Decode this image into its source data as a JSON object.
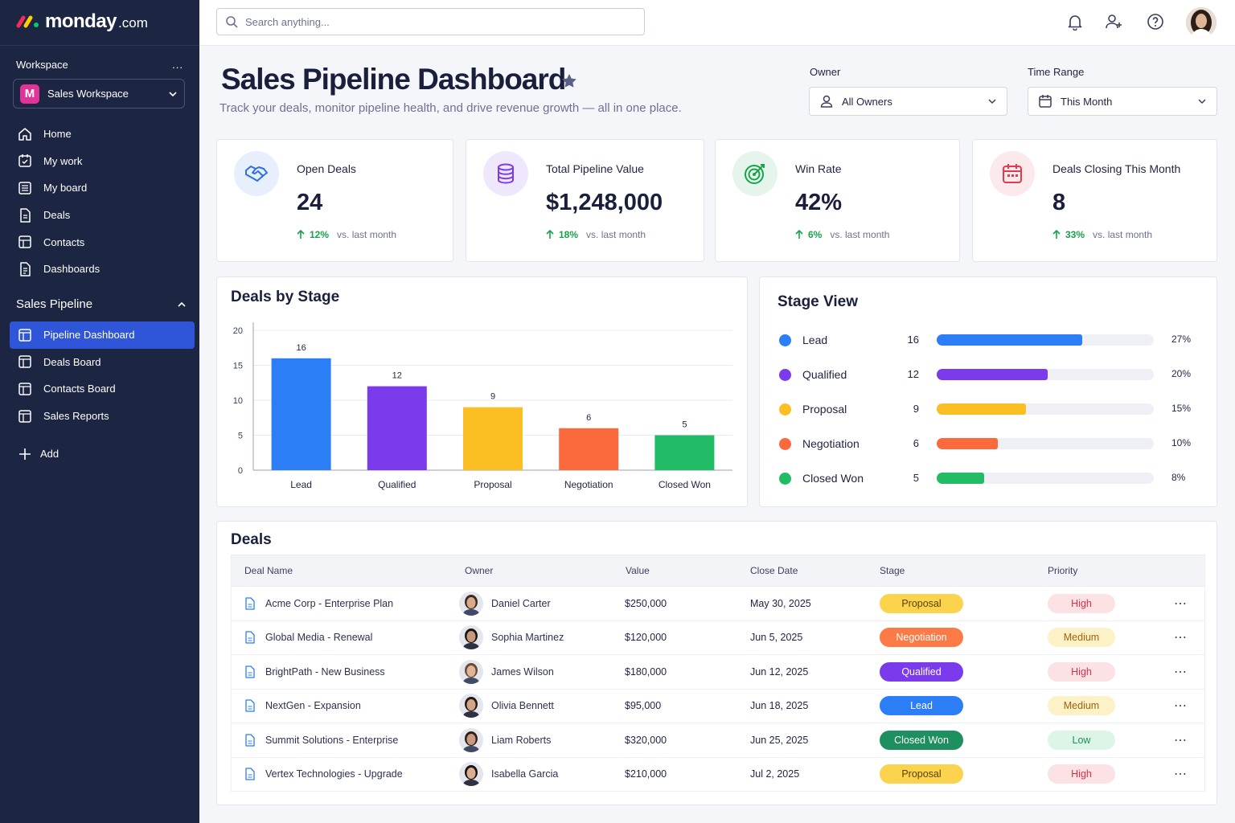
{
  "sidebar": {
    "brand": {
      "name": "monday",
      "tld": ".com"
    },
    "workspace_heading": "Workspace",
    "workspace_menu": "...",
    "workspace_badge": "M",
    "workspace_name": "Sales Workspace",
    "nav": [
      {
        "label": "Home",
        "icon": "home-icon"
      },
      {
        "label": "My work",
        "icon": "calendar-check-icon"
      },
      {
        "label": "My board",
        "icon": "board-icon"
      },
      {
        "label": "Deals",
        "icon": "document-icon"
      },
      {
        "label": "Contacts",
        "icon": "contacts-icon"
      },
      {
        "label": "Dashboards",
        "icon": "dashboard-icon"
      }
    ],
    "section_title": "Sales Pipeline",
    "section_items": [
      {
        "label": "Pipeline Dashboard",
        "active": true
      },
      {
        "label": "Deals Board"
      },
      {
        "label": "Contacts Board"
      },
      {
        "label": "Sales Reports"
      }
    ],
    "add_label": "Add"
  },
  "topbar": {
    "search_placeholder": "Search anything..."
  },
  "header": {
    "title": "Sales Pipeline Dashboard",
    "subtitle": "Track your deals, monitor pipeline health, and drive revenue growth — all in one place.",
    "owner_label": "Owner",
    "owner_value": "All Owners",
    "range_label": "Time Range",
    "range_value": "This Month"
  },
  "kpis": [
    {
      "label": "Open Deals",
      "value": "24",
      "delta": "12%",
      "vs": "vs. last month",
      "icon": "handshake-icon",
      "color": "#2f6fe0",
      "bg": "#e7effc"
    },
    {
      "label": "Total Pipeline Value",
      "value": "$1,248,000",
      "delta": "18%",
      "vs": "vs. last month",
      "icon": "coins-icon",
      "color": "#7c3aed",
      "bg": "#efe8fc"
    },
    {
      "label": "Win Rate",
      "value": "42%",
      "delta": "6%",
      "vs": "vs. last month",
      "icon": "target-icon",
      "color": "#16a34a",
      "bg": "#e6f5ec"
    },
    {
      "label": "Deals Closing This Month",
      "value": "8",
      "delta": "33%",
      "vs": "vs. last month",
      "icon": "calendar-icon",
      "color": "#e23a4f",
      "bg": "#fce9ec"
    }
  ],
  "stage_chart_title": "Deals by Stage",
  "chart_data": {
    "type": "bar",
    "categories": [
      "Lead",
      "Qualified",
      "Proposal",
      "Negotiation",
      "Closed Won"
    ],
    "values": [
      16,
      12,
      9,
      6,
      5
    ],
    "colors": [
      "#2b7ef5",
      "#7c3aed",
      "#fbbf24",
      "#fb6a3c",
      "#22bb66"
    ],
    "yticks": [
      0,
      5,
      10,
      15,
      20
    ],
    "ylim": [
      0,
      20
    ],
    "grid": true
  },
  "stage_view": {
    "title": "Stage View",
    "rows": [
      {
        "name": "Lead",
        "count": "16",
        "pct": "27%",
        "fill": 0.67,
        "color": "#2b7ef5"
      },
      {
        "name": "Qualified",
        "count": "12",
        "pct": "20%",
        "fill": 0.51,
        "color": "#7c3aed"
      },
      {
        "name": "Proposal",
        "count": "9",
        "pct": "15%",
        "fill": 0.41,
        "color": "#fbbf24"
      },
      {
        "name": "Negotiation",
        "count": "6",
        "pct": "10%",
        "fill": 0.28,
        "color": "#fb6a3c"
      },
      {
        "name": "Closed Won",
        "count": "5",
        "pct": "8%",
        "fill": 0.22,
        "color": "#22bb66"
      }
    ]
  },
  "deals": {
    "title": "Deals",
    "columns": [
      "Deal Name",
      "Owner",
      "Value",
      "Close Date",
      "Stage",
      "Priority"
    ],
    "rows": [
      {
        "name": "Acme Corp - Enterprise Plan",
        "owner": "Daniel Carter",
        "value": "$250,000",
        "date": "May 30, 2025",
        "stage": "Proposal",
        "priority": "High"
      },
      {
        "name": "Global Media - Renewal",
        "owner": "Sophia Martinez",
        "value": "$120,000",
        "date": "Jun 5, 2025",
        "stage": "Negotiation",
        "priority": "Medium"
      },
      {
        "name": "BrightPath - New Business",
        "owner": "James Wilson",
        "value": "$180,000",
        "date": "Jun 12, 2025",
        "stage": "Qualified",
        "priority": "High"
      },
      {
        "name": "NextGen - Expansion",
        "owner": "Olivia Bennett",
        "value": "$95,000",
        "date": "Jun 18, 2025",
        "stage": "Lead",
        "priority": "Medium"
      },
      {
        "name": "Summit Solutions - Enterprise",
        "owner": "Liam Roberts",
        "value": "$320,000",
        "date": "Jun 25, 2025",
        "stage": "Closed Won",
        "priority": "Low"
      },
      {
        "name": "Vertex Technologies - Upgrade",
        "owner": "Isabella Garcia",
        "value": "$210,000",
        "date": "Jul 2, 2025",
        "stage": "Proposal",
        "priority": "High"
      }
    ],
    "row_menu": "⋯"
  }
}
